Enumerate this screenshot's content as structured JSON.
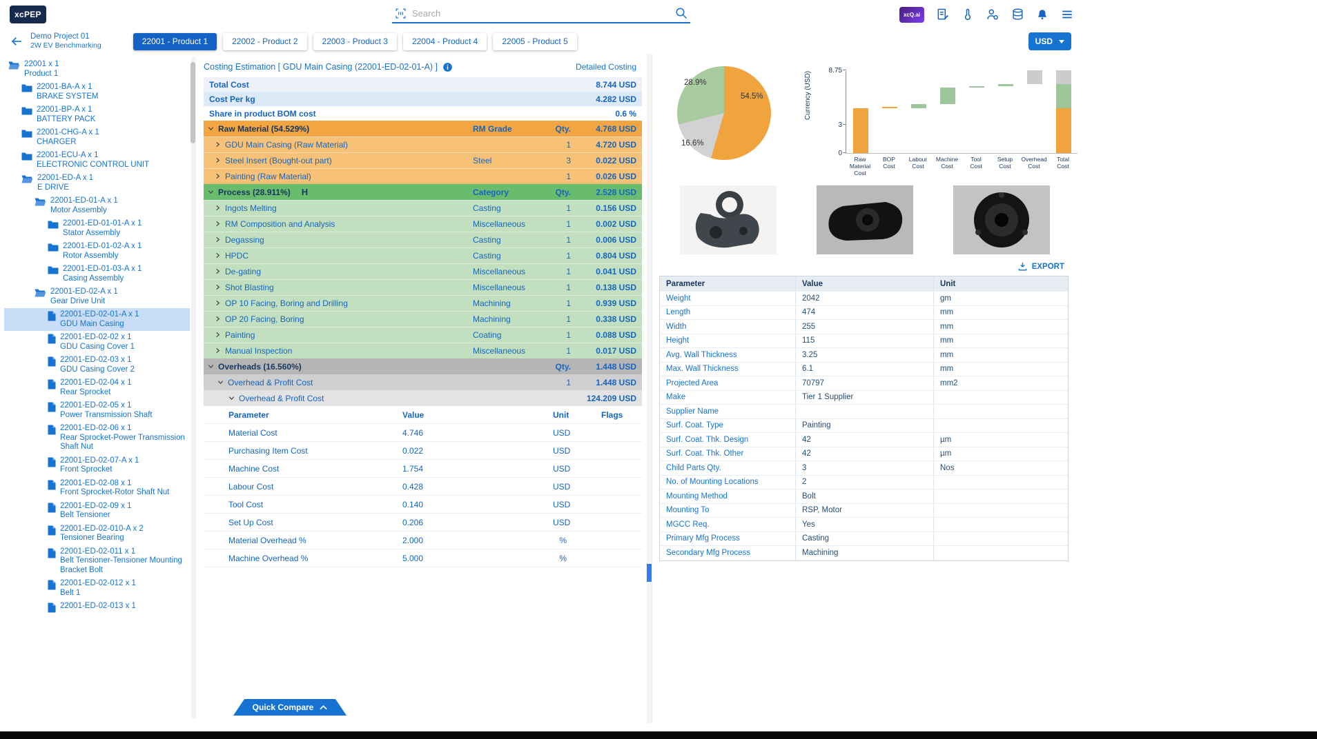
{
  "topbar": {
    "logo": "xcPEP",
    "search_placeholder": "Search",
    "xcq_badge": "xcQ.ai"
  },
  "nav": {
    "project_name": "Demo Project 01",
    "project_subtitle": "2W EV Benchmarking",
    "tabs": [
      {
        "label": "22001 - Product 1",
        "active": true
      },
      {
        "label": "22002 - Product 2",
        "active": false
      },
      {
        "label": "22003 - Product 3",
        "active": false
      },
      {
        "label": "22004 - Product 4",
        "active": false
      },
      {
        "label": "22005 - Product 5",
        "active": false
      }
    ],
    "currency": "USD"
  },
  "tree": {
    "items": [
      {
        "code": "22001 x 1",
        "name": "Product 1",
        "level": 0,
        "icon": "folder-open",
        "selected": false
      },
      {
        "code": "22001-BA-A x 1",
        "name": "BRAKE SYSTEM",
        "level": 1,
        "icon": "folder",
        "selected": false
      },
      {
        "code": "22001-BP-A x 1",
        "name": "BATTERY PACK",
        "level": 1,
        "icon": "folder",
        "selected": false
      },
      {
        "code": "22001-CHG-A x 1",
        "name": "CHARGER",
        "level": 1,
        "icon": "folder",
        "selected": false
      },
      {
        "code": "22001-ECU-A x 1",
        "name": "ELECTRONIC CONTROL UNIT",
        "level": 1,
        "icon": "folder",
        "selected": false
      },
      {
        "code": "22001-ED-A x 1",
        "name": "E DRIVE",
        "level": 1,
        "icon": "folder-open",
        "selected": false
      },
      {
        "code": "22001-ED-01-A x 1",
        "name": "Motor Assembly",
        "level": 2,
        "icon": "folder-open",
        "selected": false
      },
      {
        "code": "22001-ED-01-01-A x 1",
        "name": "Stator Assembly",
        "level": 3,
        "icon": "folder",
        "selected": false
      },
      {
        "code": "22001-ED-01-02-A x 1",
        "name": "Rotor Assembly",
        "level": 3,
        "icon": "folder",
        "selected": false
      },
      {
        "code": "22001-ED-01-03-A x 1",
        "name": "Casing Assembly",
        "level": 3,
        "icon": "folder",
        "selected": false
      },
      {
        "code": "22001-ED-02-A x 1",
        "name": "Gear Drive Unit",
        "level": 2,
        "icon": "folder-open",
        "selected": false
      },
      {
        "code": "22001-ED-02-01-A x 1",
        "name": "GDU Main Casing",
        "level": 3,
        "icon": "file",
        "selected": true
      },
      {
        "code": "22001-ED-02-02 x 1",
        "name": "GDU Casing Cover 1",
        "level": 3,
        "icon": "file",
        "selected": false
      },
      {
        "code": "22001-ED-02-03 x 1",
        "name": "GDU Casing Cover 2",
        "level": 3,
        "icon": "file",
        "selected": false
      },
      {
        "code": "22001-ED-02-04 x 1",
        "name": "Rear Sprocket",
        "level": 3,
        "icon": "file",
        "selected": false
      },
      {
        "code": "22001-ED-02-05 x 1",
        "name": "Power Transmission Shaft",
        "level": 3,
        "icon": "file",
        "selected": false
      },
      {
        "code": "22001-ED-02-06 x 1",
        "name": "Rear Sprocket-Power Transmission Shaft Nut",
        "level": 3,
        "icon": "file",
        "selected": false
      },
      {
        "code": "22001-ED-02-07-A x 1",
        "name": "Front Sprocket",
        "level": 3,
        "icon": "file",
        "selected": false
      },
      {
        "code": "22001-ED-02-08 x 1",
        "name": "Front Sprocket-Rotor Shaft Nut",
        "level": 3,
        "icon": "file",
        "selected": false
      },
      {
        "code": "22001-ED-02-09 x 1",
        "name": "Belt Tensioner",
        "level": 3,
        "icon": "file",
        "selected": false
      },
      {
        "code": "22001-ED-02-010-A x 2",
        "name": "Tensioner Bearing",
        "level": 3,
        "icon": "file",
        "selected": false
      },
      {
        "code": "22001-ED-02-011 x 1",
        "name": "Belt Tensioner-Tensioner Mounting Bracket Bolt",
        "level": 3,
        "icon": "file",
        "selected": false
      },
      {
        "code": "22001-ED-02-012 x 1",
        "name": "Belt 1",
        "level": 3,
        "icon": "file",
        "selected": false
      },
      {
        "code": "22001-ED-02-013 x 1",
        "name": "",
        "level": 3,
        "icon": "file",
        "selected": false
      }
    ]
  },
  "costing": {
    "title": "Costing Estimation [ GDU Main Casing (22001-ED-02-01-A) ]",
    "detailed_link": "Detailed Costing",
    "summary": [
      {
        "label": "Total Cost",
        "value": "8.744 USD"
      },
      {
        "label": "Cost Per kg",
        "value": "4.282 USD"
      },
      {
        "label": "Share in product BOM cost",
        "value": "0.6 %"
      }
    ],
    "sections": [
      {
        "type": "raw",
        "header": {
          "label": "Raw Material (54.529%)",
          "col2": "RM Grade",
          "col3": "Qty.",
          "value": "4.768 USD"
        },
        "rows": [
          {
            "label": "GDU Main Casing (Raw Material)",
            "col2": "",
            "qty": "1",
            "value": "4.720 USD"
          },
          {
            "label": "Steel Insert (Bought-out part)",
            "col2": "Steel",
            "qty": "3",
            "value": "0.022 USD"
          },
          {
            "label": "Painting (Raw Material)",
            "col2": "",
            "qty": "1",
            "value": "0.026 USD"
          }
        ]
      },
      {
        "type": "process",
        "header": {
          "label": "Process (28.911%)",
          "badge": "H",
          "col2": "Category",
          "col3": "Qty.",
          "value": "2.528 USD"
        },
        "rows": [
          {
            "label": "Ingots Melting",
            "col2": "Casting",
            "qty": "1",
            "value": "0.156 USD"
          },
          {
            "label": "RM Composition and Analysis",
            "col2": "Miscellaneous",
            "qty": "1",
            "value": "0.002 USD"
          },
          {
            "label": "Degassing",
            "col2": "Casting",
            "qty": "1",
            "value": "0.006 USD"
          },
          {
            "label": "HPDC",
            "col2": "Casting",
            "qty": "1",
            "value": "0.804 USD"
          },
          {
            "label": "De-gating",
            "col2": "Miscellaneous",
            "qty": "1",
            "value": "0.041 USD"
          },
          {
            "label": "Shot Blasting",
            "col2": "Miscellaneous",
            "qty": "1",
            "value": "0.138 USD"
          },
          {
            "label": "OP 10 Facing, Boring and Drilling",
            "col2": "Machining",
            "qty": "1",
            "value": "0.939 USD"
          },
          {
            "label": "OP 20 Facing, Boring",
            "col2": "Machining",
            "qty": "1",
            "value": "0.338 USD"
          },
          {
            "label": "Painting",
            "col2": "Coating",
            "qty": "1",
            "value": "0.088 USD"
          },
          {
            "label": "Manual Inspection",
            "col2": "Miscellaneous",
            "qty": "1",
            "value": "0.017 USD"
          }
        ]
      },
      {
        "type": "oh",
        "header": {
          "label": "Overheads (16.560%)",
          "col2": "",
          "col3": "Qty.",
          "value": "1.448 USD"
        },
        "sub1": {
          "label": "Overhead & Profit Cost",
          "qty": "1",
          "value": "1.448 USD"
        },
        "sub2": {
          "label": "Overhead & Profit Cost",
          "value": "124.209 USD"
        },
        "param_header": [
          "Parameter",
          "Value",
          "Unit",
          "Flags"
        ],
        "param_rows": [
          {
            "param": "Material Cost",
            "value": "4.746",
            "unit": "USD"
          },
          {
            "param": "Purchasing Item Cost",
            "value": "0.022",
            "unit": "USD"
          },
          {
            "param": "Machine Cost",
            "value": "1.754",
            "unit": "USD"
          },
          {
            "param": "Labour Cost",
            "value": "0.428",
            "unit": "USD"
          },
          {
            "param": "Tool Cost",
            "value": "0.140",
            "unit": "USD"
          },
          {
            "param": "Set Up Cost",
            "value": "0.206",
            "unit": "USD"
          },
          {
            "param": "Material Overhead %",
            "value": "2.000",
            "unit": "%"
          },
          {
            "param": "Machine Overhead %",
            "value": "5.000",
            "unit": "%"
          }
        ]
      }
    ]
  },
  "right_panel": {
    "export_label": "EXPORT",
    "table": {
      "headers": [
        "Parameter",
        "Value",
        "Unit"
      ],
      "rows": [
        [
          "Weight",
          "2042",
          "gm"
        ],
        [
          "Length",
          "474",
          "mm"
        ],
        [
          "Width",
          "255",
          "mm"
        ],
        [
          "Height",
          "115",
          "mm"
        ],
        [
          "Avg. Wall Thickness",
          "3.25",
          "mm"
        ],
        [
          "Max. Wall Thickness",
          "6.1",
          "mm"
        ],
        [
          "Projected Area",
          "70797",
          "mm2"
        ],
        [
          "Make",
          "Tier 1 Supplier",
          ""
        ],
        [
          "Supplier Name",
          "",
          ""
        ],
        [
          "Surf. Coat. Type",
          "Painting",
          ""
        ],
        [
          "Surf. Coat. Thk. Design",
          "42",
          "µm"
        ],
        [
          "Surf. Coat. Thk. Other",
          "42",
          "µm"
        ],
        [
          "Child Parts Qty.",
          "3",
          "Nos"
        ],
        [
          "No. of Mounting Locations",
          "2",
          ""
        ],
        [
          "Mounting Method",
          "Bolt",
          ""
        ],
        [
          "Mounting To",
          "RSP, Motor",
          ""
        ],
        [
          "MGCC Req.",
          "Yes",
          ""
        ],
        [
          "Primary Mfg Process",
          "Casting",
          ""
        ],
        [
          "Secondary Mfg Process",
          "Machining",
          ""
        ]
      ]
    }
  },
  "quick_compare_label": "Quick Compare",
  "chart_data": [
    {
      "type": "pie",
      "slices": [
        {
          "label": "Raw Material",
          "pct": 54.5,
          "display": "54.5%",
          "color": "#F0A43E"
        },
        {
          "label": "Overheads",
          "pct": 16.6,
          "display": "16.6%",
          "color": "#D2D2D2"
        },
        {
          "label": "Process",
          "pct": 28.9,
          "display": "28.9%",
          "color": "#A9CBA0"
        }
      ]
    },
    {
      "type": "bar",
      "subtype": "waterfall",
      "categories": [
        "Raw Material Cost",
        "BOP Cost",
        "Labour Cost",
        "Machine Cost",
        "Tool Cost",
        "Setup Cost",
        "Overhead Cost",
        "Total Cost"
      ],
      "values": [
        4.746,
        0.022,
        0.428,
        1.754,
        0.14,
        0.206,
        1.448,
        8.744
      ],
      "bar_colors": [
        "#F0A43E",
        "#F0A43E",
        "#9DC69B",
        "#9DC69B",
        "#9DC69B",
        "#9DC69B",
        "#CCCCCC"
      ],
      "ylabel": "Currency (USD)",
      "yticks": [
        0,
        3,
        8.75
      ],
      "ylim": [
        0,
        8.75
      ]
    }
  ]
}
